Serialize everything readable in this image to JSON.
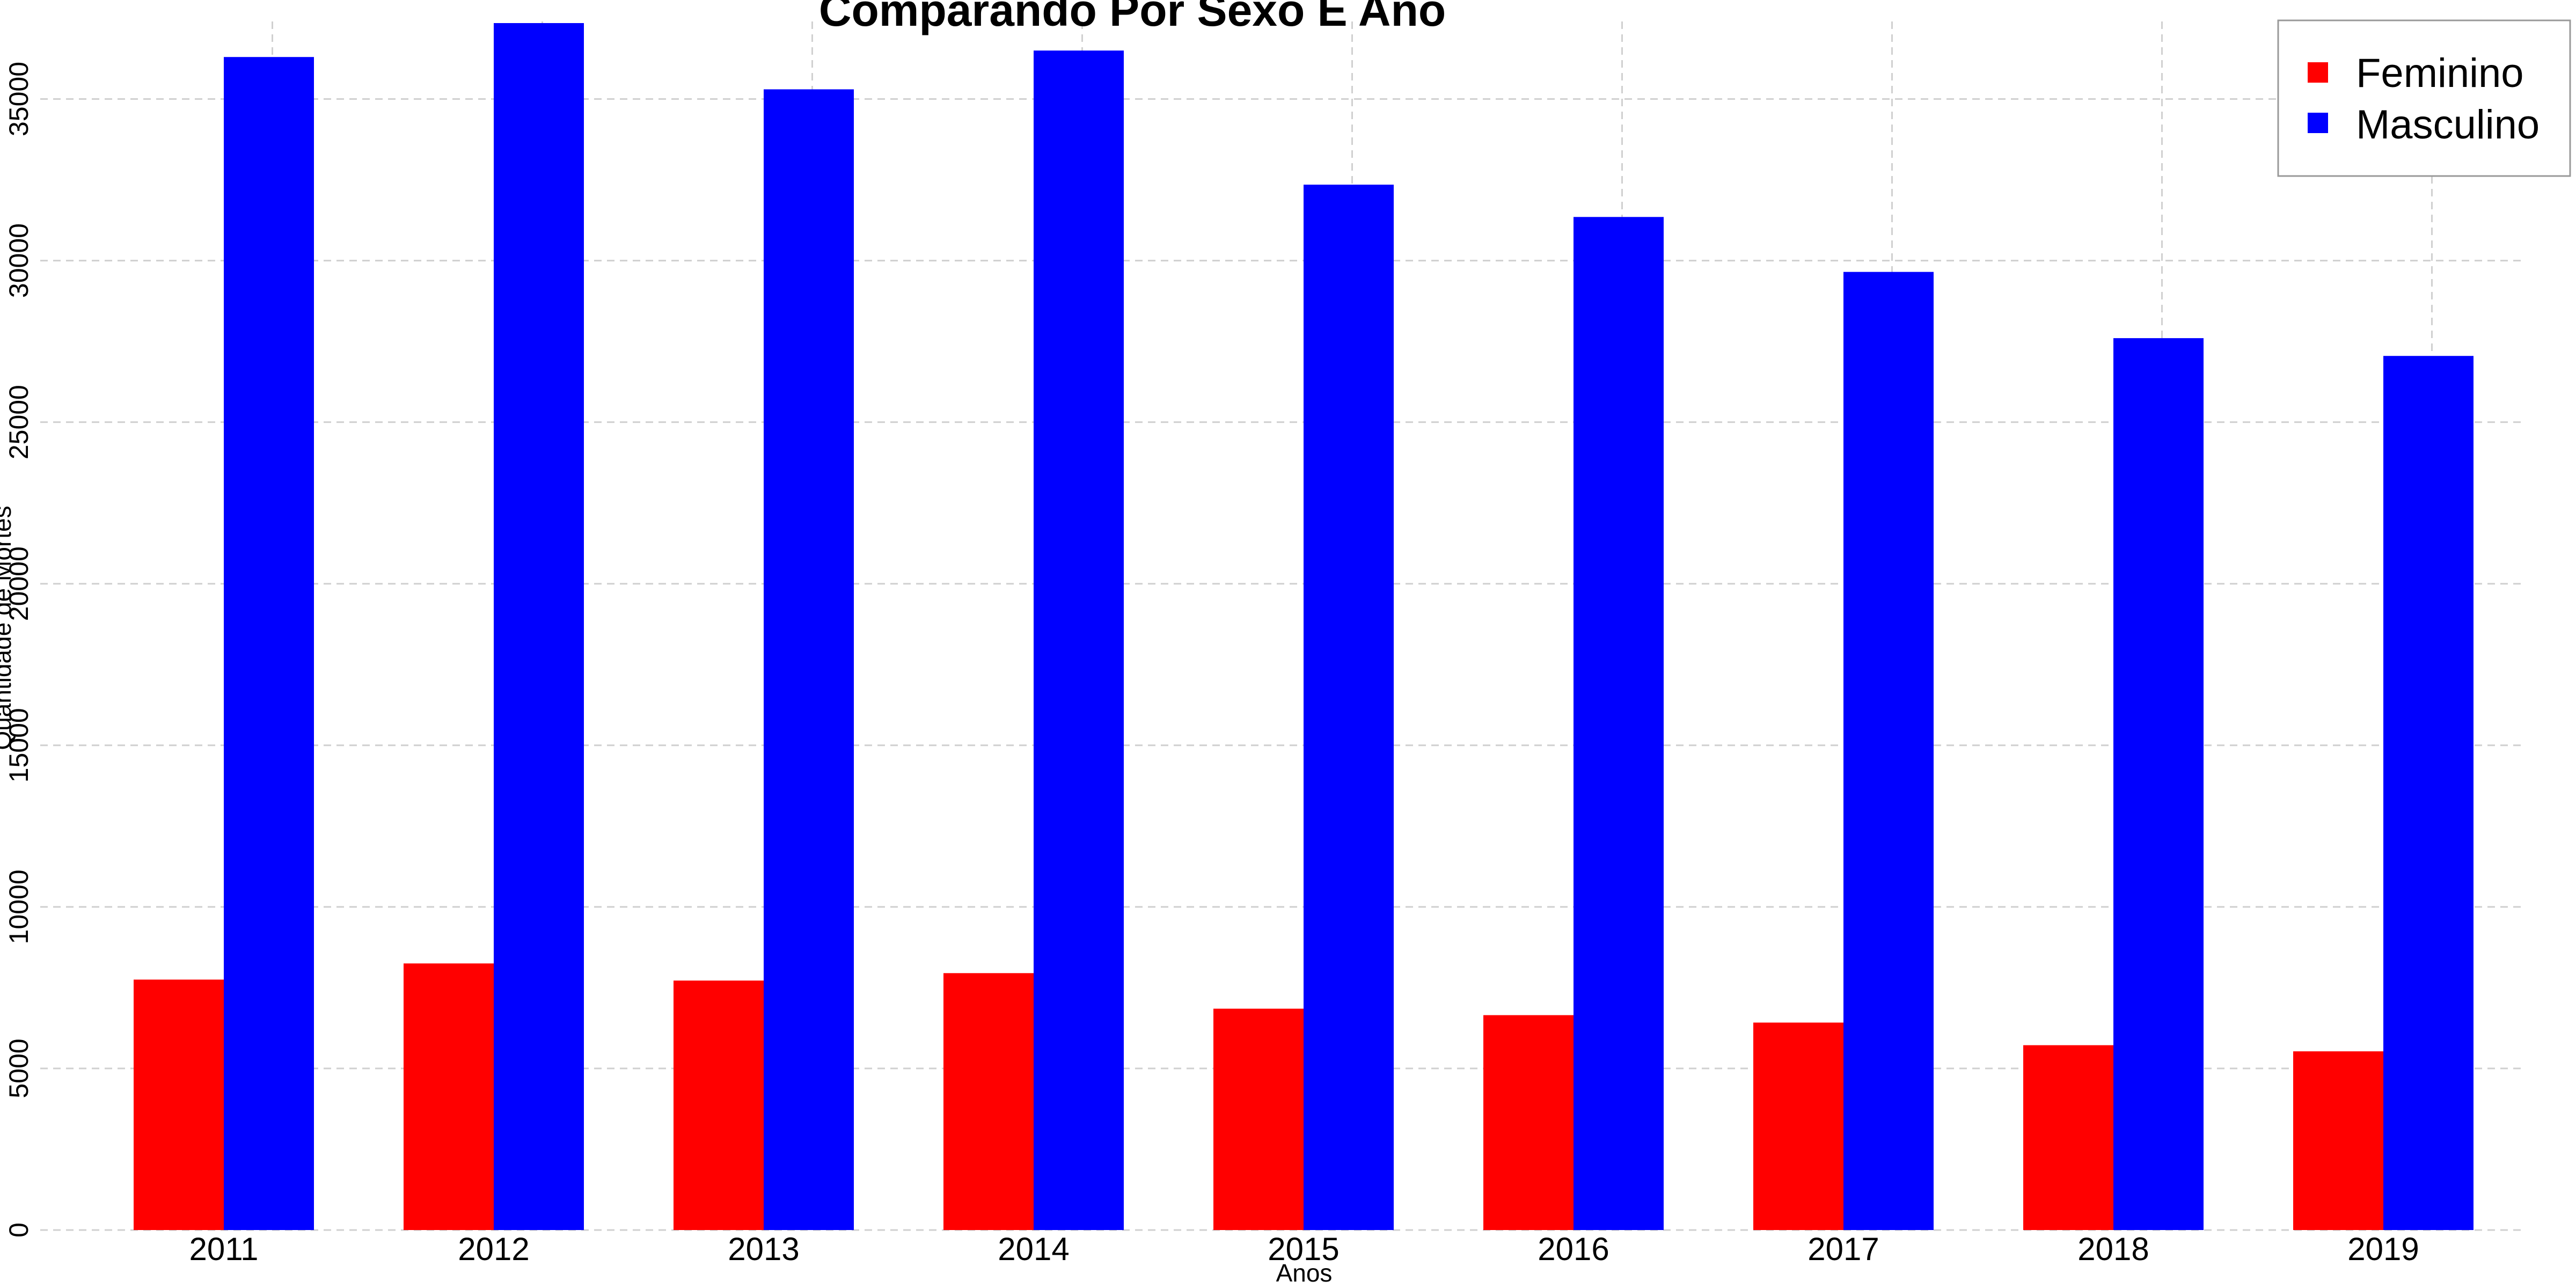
{
  "chart_data": {
    "type": "bar",
    "title": "Comparando Por Sexo E Ano",
    "xlabel": "Anos",
    "ylabel": "Quantidade de Mortes",
    "categories": [
      "2011",
      "2012",
      "2013",
      "2014",
      "2015",
      "2016",
      "2017",
      "2018",
      "2019"
    ],
    "series": [
      {
        "name": "Feminino",
        "color": "#ff0000",
        "values": [
          7750,
          8250,
          7720,
          7950,
          6850,
          6650,
          6420,
          5720,
          5530
        ]
      },
      {
        "name": "Masculino",
        "color": "#0000ff",
        "values": [
          36300,
          37350,
          35300,
          36500,
          32350,
          31350,
          29650,
          27600,
          27050
        ]
      }
    ],
    "ylim": [
      0,
      37400
    ],
    "yticks": [
      0,
      5000,
      10000,
      15000,
      20000,
      25000,
      30000,
      35000
    ],
    "grid": true,
    "legend_position": "top-right"
  }
}
